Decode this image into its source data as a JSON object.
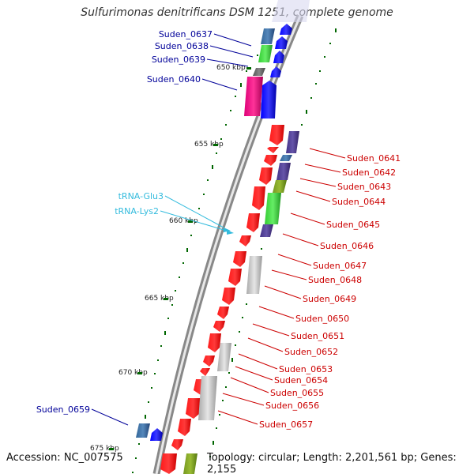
{
  "title": "Sulfurimonas denitrificans DSM 1251, complete genome",
  "footer": {
    "accession": "Accession: NC_007575",
    "topology": "Topology: circular; Length: 2,201,561 bp; Genes: 2,155"
  },
  "colors": {
    "outer_strand_gene_label": "#000099",
    "inner_strand_gene_label": "#cc0000",
    "trna_label": "#33bbdd",
    "tick": "#006600",
    "backbone": "#888888"
  },
  "kbp_markers": [
    "650 kbp",
    "655 kbp",
    "660 kbp",
    "665 kbp",
    "670 kbp",
    "675 kbp"
  ],
  "outer_genes": [
    "Suden_0637",
    "Suden_0638",
    "Suden_0639",
    "Suden_0640",
    "Suden_0659"
  ],
  "trna_genes": [
    "tRNA-Glu3",
    "tRNA-Lys2"
  ],
  "inner_genes": [
    "Suden_0641",
    "Suden_0642",
    "Suden_0643",
    "Suden_0644",
    "Suden_0645",
    "Suden_0646",
    "Suden_0647",
    "Suden_0648",
    "Suden_0649",
    "Suden_0650",
    "Suden_0651",
    "Suden_0652",
    "Suden_0653",
    "Suden_0654",
    "Suden_0655",
    "Suden_0656",
    "Suden_0657"
  ]
}
